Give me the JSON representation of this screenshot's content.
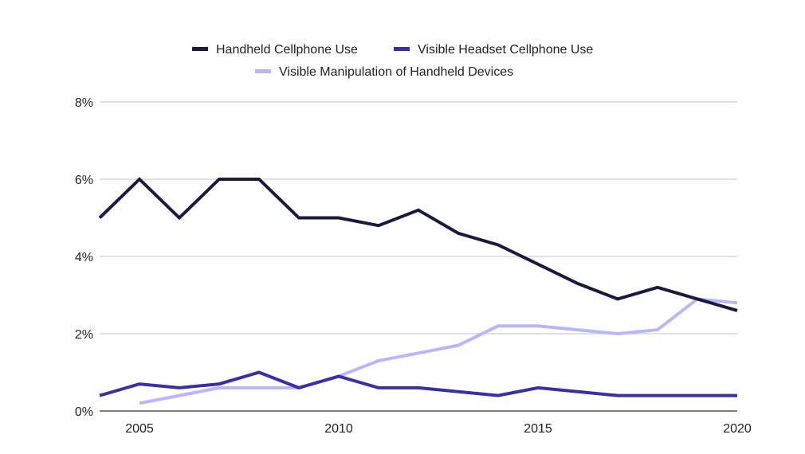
{
  "chart_data": {
    "type": "line",
    "title": "",
    "xlabel": "",
    "ylabel": "",
    "xlim": [
      2004,
      2020
    ],
    "ylim": [
      0,
      8
    ],
    "grid": true,
    "legend_position": "top",
    "x_ticks": [
      "2005",
      "2010",
      "2015",
      "2020"
    ],
    "y_ticks": [
      "0%",
      "2%",
      "4%",
      "6%",
      "8%"
    ],
    "x": [
      2004,
      2005,
      2006,
      2007,
      2008,
      2009,
      2010,
      2011,
      2012,
      2013,
      2014,
      2015,
      2016,
      2017,
      2018,
      2019,
      2020
    ],
    "series": [
      {
        "name": "Handheld Cellphone Use",
        "color": "#1b1a3c",
        "values": [
          5,
          6,
          5,
          6,
          6,
          5,
          5,
          4.8,
          5.2,
          4.6,
          4.3,
          3.8,
          3.3,
          2.9,
          3.2,
          2.9,
          2.6
        ]
      },
      {
        "name": "Visible Headset Cellphone Use",
        "color": "#3a2fa3",
        "values": [
          0.4,
          0.7,
          0.6,
          0.7,
          1.0,
          0.6,
          0.9,
          0.6,
          0.6,
          0.5,
          0.4,
          0.6,
          0.5,
          0.4,
          0.4,
          0.4,
          0.4
        ]
      },
      {
        "name": "Visible Manipulation of Handheld Devices",
        "color": "#bab6fd",
        "values": [
          null,
          0.2,
          0.4,
          0.6,
          0.6,
          0.6,
          0.9,
          1.3,
          1.5,
          1.7,
          2.2,
          2.2,
          2.1,
          2.0,
          2.1,
          2.9,
          2.8
        ]
      }
    ]
  }
}
